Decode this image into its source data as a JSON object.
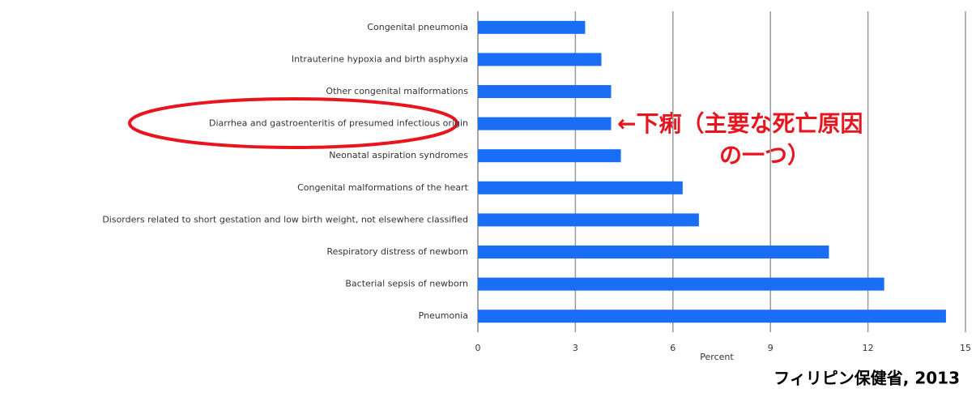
{
  "chart_data": {
    "type": "barh",
    "categories": [
      "Congenital pneumonia",
      "Intrauterine hypoxia and birth asphyxia",
      "Other congenital malformations",
      "Diarrhea and gastroenteritis of presumed infectious origin",
      "Neonatal aspiration syndromes",
      "Congenital malformations of the heart",
      "Disorders related to short gestation and low birth weight, not elsewhere classified",
      "Respiratory distress of newborn",
      "Bacterial sepsis of newborn",
      "Pneumonia"
    ],
    "values": [
      3.3,
      3.8,
      4.1,
      4.1,
      4.4,
      6.3,
      6.8,
      10.8,
      12.5,
      14.4
    ],
    "color": "#1a6ef5",
    "xlim": [
      0,
      15
    ],
    "xticks": [
      0,
      3,
      6,
      9,
      12,
      15
    ],
    "grid": true,
    "xlabel": "Percent",
    "annotation": [
      "←下痢（主要な死亡原因",
      "の一つ）"
    ],
    "source": "フィリピン保健省, 2013"
  }
}
